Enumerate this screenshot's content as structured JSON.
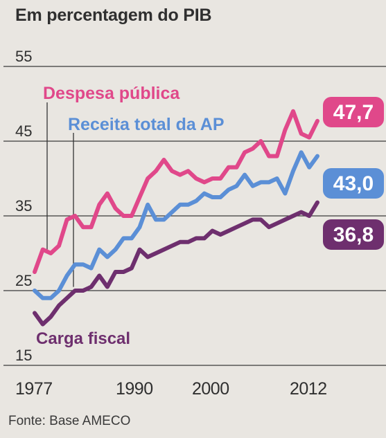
{
  "title": "Em percentagem do PIB",
  "source": "Fonte: Base AMECO",
  "colors": {
    "despesa": "#e0488a",
    "receita": "#5b8fd6",
    "carga": "#6e2f6e",
    "grid": "#3a3a3a",
    "background": "#e9e6e1"
  },
  "chart_data": {
    "type": "line",
    "title": "Em percentagem do PIB",
    "xlabel": "",
    "ylabel": "",
    "x_ticks": [
      "1977",
      "1990",
      "2000",
      "2012"
    ],
    "y_ticks": [
      "55",
      "45",
      "35",
      "25",
      "15"
    ],
    "ylim": [
      15,
      55
    ],
    "xlim": [
      1977,
      2014
    ],
    "grid": true,
    "series": [
      {
        "name": "Despesa pública",
        "color": "#e0488a",
        "end_label": "47,7",
        "x": [
          1977,
          1978,
          1979,
          1980,
          1981,
          1982,
          1983,
          1984,
          1985,
          1986,
          1987,
          1988,
          1989,
          1990,
          1991,
          1992,
          1993,
          1994,
          1995,
          1996,
          1997,
          1998,
          1999,
          2000,
          2001,
          2002,
          2003,
          2004,
          2005,
          2006,
          2007,
          2008,
          2009,
          2010,
          2011,
          2012
        ],
        "values": [
          27.5,
          30.5,
          30.0,
          31.0,
          34.5,
          35.0,
          33.5,
          33.5,
          36.5,
          38.0,
          36.0,
          35.0,
          35.0,
          37.5,
          40.0,
          41.0,
          42.5,
          41.0,
          40.5,
          41.0,
          40.0,
          39.5,
          40.0,
          40.0,
          41.5,
          41.5,
          43.5,
          44.0,
          45.0,
          43.0,
          43.0,
          46.5,
          49.0,
          46.0,
          45.5,
          47.7
        ]
      },
      {
        "name": "Receita total da AP",
        "color": "#5b8fd6",
        "end_label": "43,0",
        "x": [
          1977,
          1978,
          1979,
          1980,
          1981,
          1982,
          1983,
          1984,
          1985,
          1986,
          1987,
          1988,
          1989,
          1990,
          1991,
          1992,
          1993,
          1994,
          1995,
          1996,
          1997,
          1998,
          1999,
          2000,
          2001,
          2002,
          2003,
          2004,
          2005,
          2006,
          2007,
          2008,
          2009,
          2010,
          2011,
          2012
        ],
        "values": [
          25.0,
          24.0,
          24.0,
          25.0,
          27.0,
          28.5,
          28.5,
          28.0,
          30.5,
          29.5,
          30.5,
          32.0,
          32.0,
          33.5,
          36.5,
          34.5,
          34.5,
          35.5,
          36.5,
          36.5,
          37.0,
          38.0,
          37.5,
          37.5,
          38.5,
          39.0,
          40.5,
          39.0,
          39.5,
          39.5,
          40.0,
          38.0,
          41.0,
          43.5,
          41.5,
          43.0
        ]
      },
      {
        "name": "Carga fiscal",
        "color": "#6e2f6e",
        "end_label": "36,8",
        "x": [
          1977,
          1978,
          1979,
          1980,
          1981,
          1982,
          1983,
          1984,
          1985,
          1986,
          1987,
          1988,
          1989,
          1990,
          1991,
          1992,
          1993,
          1994,
          1995,
          1996,
          1997,
          1998,
          1999,
          2000,
          2001,
          2002,
          2003,
          2004,
          2005,
          2006,
          2007,
          2008,
          2009,
          2010,
          2011,
          2012
        ],
        "values": [
          22.0,
          20.5,
          21.5,
          23.0,
          24.0,
          25.0,
          25.0,
          25.5,
          27.0,
          25.5,
          27.5,
          27.5,
          28.0,
          30.5,
          29.5,
          30.0,
          30.5,
          31.0,
          31.5,
          31.5,
          32.0,
          32.0,
          33.0,
          32.5,
          33.0,
          33.5,
          34.0,
          34.5,
          34.5,
          33.5,
          34.0,
          34.5,
          35.0,
          35.5,
          35.0,
          36.8
        ]
      }
    ]
  }
}
